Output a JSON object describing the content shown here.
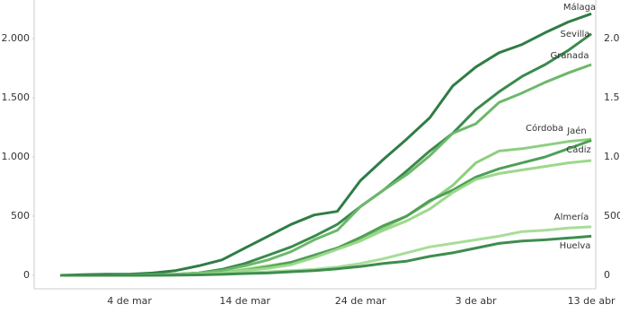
{
  "chart_data": {
    "type": "line",
    "categories": [
      null,
      null,
      null,
      "4 de mar",
      null,
      null,
      null,
      null,
      "14 de mar",
      null,
      null,
      null,
      null,
      "24 de mar",
      null,
      null,
      null,
      null,
      "3 de abr",
      null,
      null,
      null,
      null,
      "13 de abr"
    ],
    "ylim": [
      0,
      2300
    ],
    "yticks": [
      0,
      500,
      {
        "value": 1000,
        "label": "1.000"
      },
      {
        "value": 1500,
        "label": "1.500"
      },
      {
        "value": 2000,
        "label": "2.000"
      }
    ],
    "series": [
      {
        "name": "Málaga",
        "color": "#2f7d45",
        "values": [
          0,
          5,
          10,
          10,
          20,
          40,
          80,
          130,
          230,
          330,
          430,
          510,
          540,
          800,
          980,
          1150,
          1330,
          1600,
          1760,
          1880,
          1950,
          2050,
          2140,
          2210
        ]
      },
      {
        "name": "Sevilla",
        "color": "#3a8a4c",
        "values": [
          0,
          0,
          0,
          2,
          5,
          10,
          20,
          50,
          100,
          170,
          240,
          330,
          430,
          580,
          720,
          880,
          1050,
          1200,
          1400,
          1550,
          1680,
          1780,
          1900,
          2040
        ]
      },
      {
        "name": "Granada",
        "color": "#6cb86a",
        "values": [
          0,
          0,
          0,
          2,
          5,
          10,
          20,
          40,
          80,
          130,
          200,
          300,
          380,
          580,
          720,
          850,
          1010,
          1200,
          1280,
          1460,
          1540,
          1630,
          1710,
          1780
        ]
      },
      {
        "name": "Córdoba",
        "color": "#8ccf7e",
        "values": [
          0,
          0,
          0,
          0,
          2,
          5,
          10,
          20,
          50,
          80,
          110,
          170,
          230,
          300,
          400,
          500,
          620,
          760,
          950,
          1050,
          1070,
          1100,
          1130,
          1150
        ]
      },
      {
        "name": "Jaén",
        "color": "#4f9f57",
        "values": [
          0,
          0,
          0,
          0,
          2,
          5,
          10,
          20,
          40,
          70,
          110,
          170,
          230,
          320,
          420,
          500,
          630,
          720,
          830,
          900,
          950,
          1000,
          1070,
          1140
        ]
      },
      {
        "name": "Cádiz",
        "color": "#9bd98a",
        "values": [
          0,
          0,
          0,
          0,
          2,
          5,
          10,
          20,
          40,
          60,
          90,
          150,
          220,
          290,
          380,
          460,
          560,
          700,
          810,
          860,
          890,
          920,
          950,
          970
        ]
      },
      {
        "name": "Almería",
        "color": "#a8dd98",
        "values": [
          0,
          0,
          0,
          0,
          0,
          2,
          5,
          10,
          20,
          30,
          40,
          50,
          70,
          100,
          140,
          190,
          240,
          270,
          300,
          330,
          370,
          380,
          400,
          410
        ]
      },
      {
        "name": "Huelva",
        "color": "#3e8d4e",
        "values": [
          0,
          0,
          0,
          0,
          0,
          2,
          4,
          8,
          15,
          20,
          30,
          40,
          55,
          75,
          100,
          120,
          160,
          190,
          230,
          270,
          290,
          300,
          315,
          330
        ]
      }
    ]
  }
}
